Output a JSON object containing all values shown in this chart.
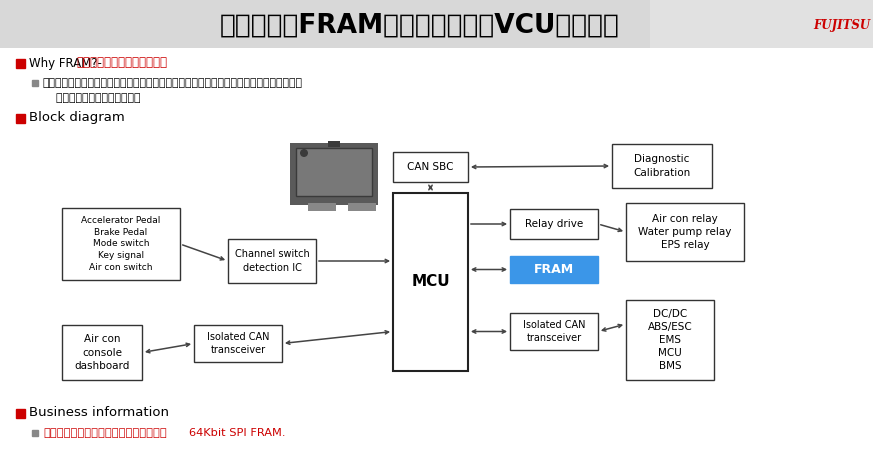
{
  "title_zh": "应用举例：FRAM在整车控制单元VCU中的应用",
  "title_fujitsu": "FUJITSU",
  "bg_color": "#ffffff",
  "title_bg": "#d8d8d8",
  "bullet1_label": "Why FRAM?-",
  "bullet1_red": "高烧写耐久性，告诉写入操作",
  "bullet2_zh": "系统需要以每秒一次的频率去记录汽车行驶的当前状态和发生故障时的变速器挡位，加速状\n    况，刹车和输出扭矩等信息。",
  "block_diagram_label": "Block diagram",
  "business_label": "Business information",
  "business_sub": "中国的新能源汽车和低速代步车开始使用",
  "business_sub2": "64Kbit SPI FRAM.",
  "fram_fill": "#3b96e8",
  "fram_text": "FRAM",
  "mcu_text": "MCU",
  "can_sbc_text": "CAN SBC",
  "relay_drive_text": "Relay drive",
  "diag_text": "Diagnostic\nCalibration",
  "accel_text": "Accelerator Pedal\nBrake Pedal\nMode switch\nKey signal\nAir con switch",
  "channel_text": "Channel switch\ndetection IC",
  "air_con_text": "Air con\nconsole\ndashboard",
  "isolated_can1_text": "Isolated CAN\ntransceiver",
  "isolated_can2_text": "Isolated CAN\ntransceiver",
  "right_relay_text": "Air con relay\nWater pump relay\nEPS relay",
  "right_dc_text": "DC/DC\nABS/ESC\nEMS\nMCU\nBMS"
}
